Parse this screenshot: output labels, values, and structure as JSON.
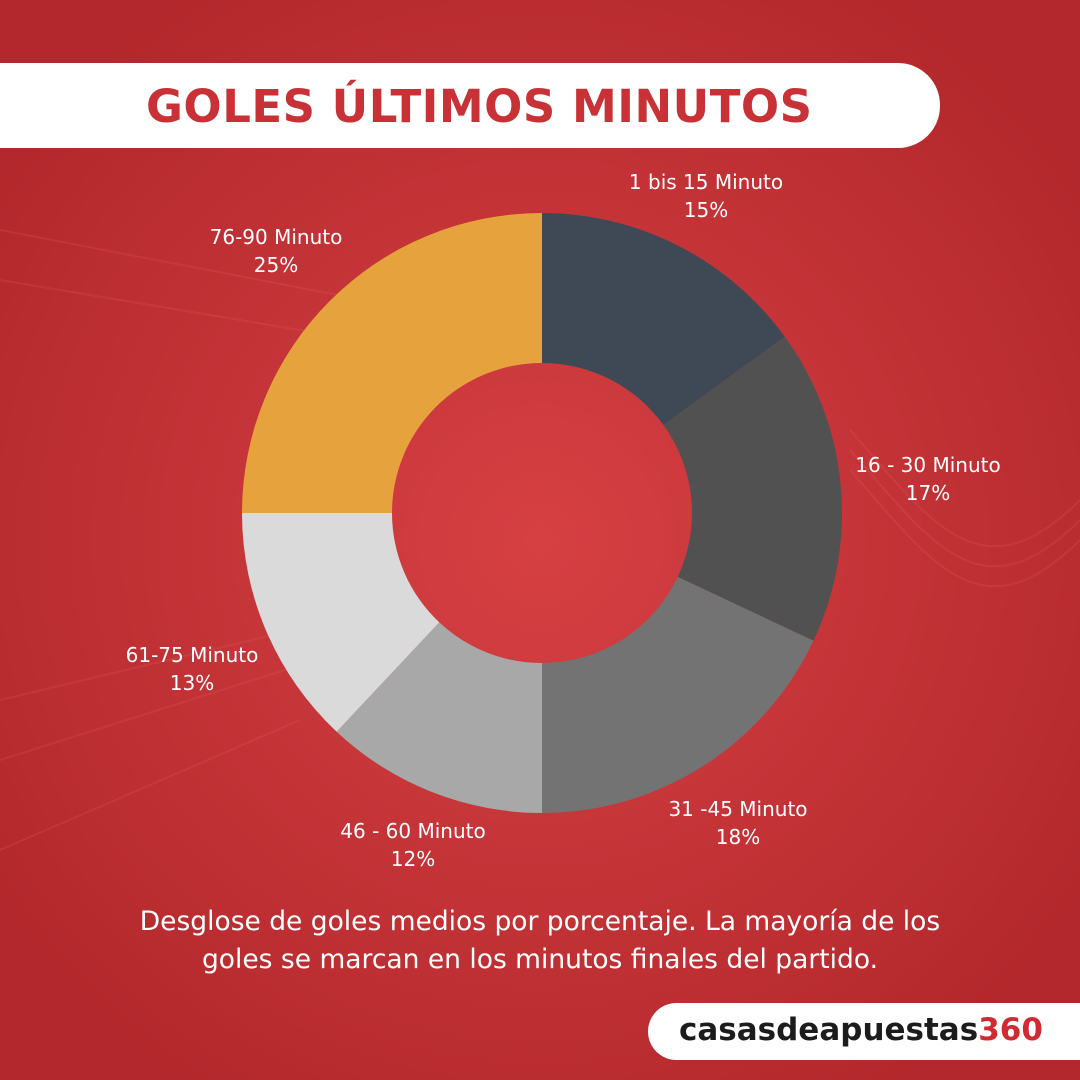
{
  "header": {
    "title": "GOLES ÚLTIMOS MINUTOS"
  },
  "chart_data": {
    "type": "pie",
    "style": "donut",
    "title": "GOLES ÚLTIMOS MINUTOS",
    "slices": [
      {
        "label": "1 bis 15 Minuto",
        "value": 15,
        "value_label": "15%",
        "color": "#3e4955"
      },
      {
        "label": "16 - 30 Minuto",
        "value": 17,
        "value_label": "17%",
        "color": "#515151"
      },
      {
        "label": "31 -45 Minuto",
        "value": 18,
        "value_label": "18%",
        "color": "#737373"
      },
      {
        "label": "46 - 60 Minuto",
        "value": 12,
        "value_label": "12%",
        "color": "#a8a8a8"
      },
      {
        "label": "61-75 Minuto",
        "value": 13,
        "value_label": "13%",
        "color": "#dadada"
      },
      {
        "label": "76-90 Minuto",
        "value": 25,
        "value_label": "25%",
        "color": "#e6a23c"
      }
    ],
    "legend": "none"
  },
  "caption": {
    "line1": "Desglose de goles medios por porcentaje. La mayoría de los",
    "line2": "goles se marcan en los minutos finales del partido."
  },
  "brand": {
    "name": "casasdeapuestas",
    "number": "360"
  },
  "colors": {
    "background": "#c93235",
    "title": "#c83236",
    "brand_accent": "#d12a30"
  }
}
